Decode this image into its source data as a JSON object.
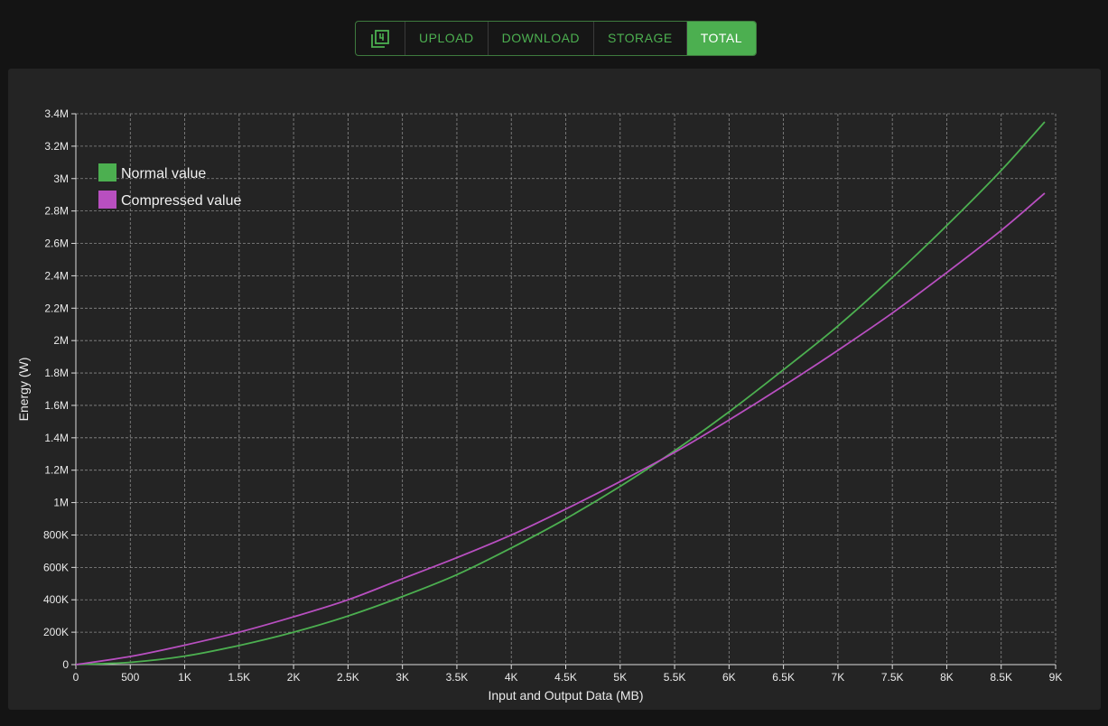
{
  "toolbar": {
    "icon": "filter-4-icon",
    "tabs": [
      {
        "label": "UPLOAD",
        "active": false
      },
      {
        "label": "DOWNLOAD",
        "active": false
      },
      {
        "label": "STORAGE",
        "active": false
      },
      {
        "label": "TOTAL",
        "active": true
      }
    ]
  },
  "colors": {
    "accent": "#4caf50",
    "normal": "#4caf50",
    "compressed": "#b84fc0",
    "grid": "#8a8a8a"
  },
  "chart_data": {
    "type": "line",
    "title": "",
    "xlabel": "Input and Output Data (MB)",
    "ylabel": "Energy (W)",
    "xlim": [
      0,
      9000
    ],
    "ylim": [
      0,
      3400000
    ],
    "x_ticks": [
      0,
      500,
      1000,
      1500,
      2000,
      2500,
      3000,
      3500,
      4000,
      4500,
      5000,
      5500,
      6000,
      6500,
      7000,
      7500,
      8000,
      8500,
      9000
    ],
    "x_tick_labels": [
      "0",
      "500",
      "1K",
      "1.5K",
      "2K",
      "2.5K",
      "3K",
      "3.5K",
      "4K",
      "4.5K",
      "5K",
      "5.5K",
      "6K",
      "6.5K",
      "7K",
      "7.5K",
      "8K",
      "8.5K",
      "9K"
    ],
    "y_ticks": [
      0,
      200000,
      400000,
      600000,
      800000,
      1000000,
      1200000,
      1400000,
      1600000,
      1800000,
      2000000,
      2200000,
      2400000,
      2600000,
      2800000,
      3000000,
      3200000,
      3400000
    ],
    "y_tick_labels": [
      "0",
      "200K",
      "400K",
      "600K",
      "800K",
      "1M",
      "1.2M",
      "1.4M",
      "1.6M",
      "1.8M",
      "2M",
      "2.2M",
      "2.4M",
      "2.6M",
      "2.8M",
      "3M",
      "3.2M",
      "3.4M"
    ],
    "grid": true,
    "legend_position": "top-left",
    "x": [
      0,
      500,
      1000,
      1500,
      2000,
      2500,
      3000,
      3500,
      4000,
      4500,
      5000,
      5500,
      6000,
      6500,
      7000,
      7500,
      8000,
      8500,
      8900
    ],
    "series": [
      {
        "name": "Normal value",
        "color": "#4caf50",
        "values": [
          0,
          14000,
          52000,
          118000,
          200000,
          300000,
          420000,
          555000,
          720000,
          900000,
          1100000,
          1320000,
          1560000,
          1820000,
          2090000,
          2390000,
          2710000,
          3050000,
          3350000
        ]
      },
      {
        "name": "Compressed value",
        "color": "#b84fc0",
        "values": [
          0,
          50000,
          120000,
          200000,
          295000,
          400000,
          530000,
          660000,
          800000,
          960000,
          1130000,
          1310000,
          1510000,
          1720000,
          1940000,
          2170000,
          2420000,
          2680000,
          2910000
        ]
      }
    ]
  }
}
